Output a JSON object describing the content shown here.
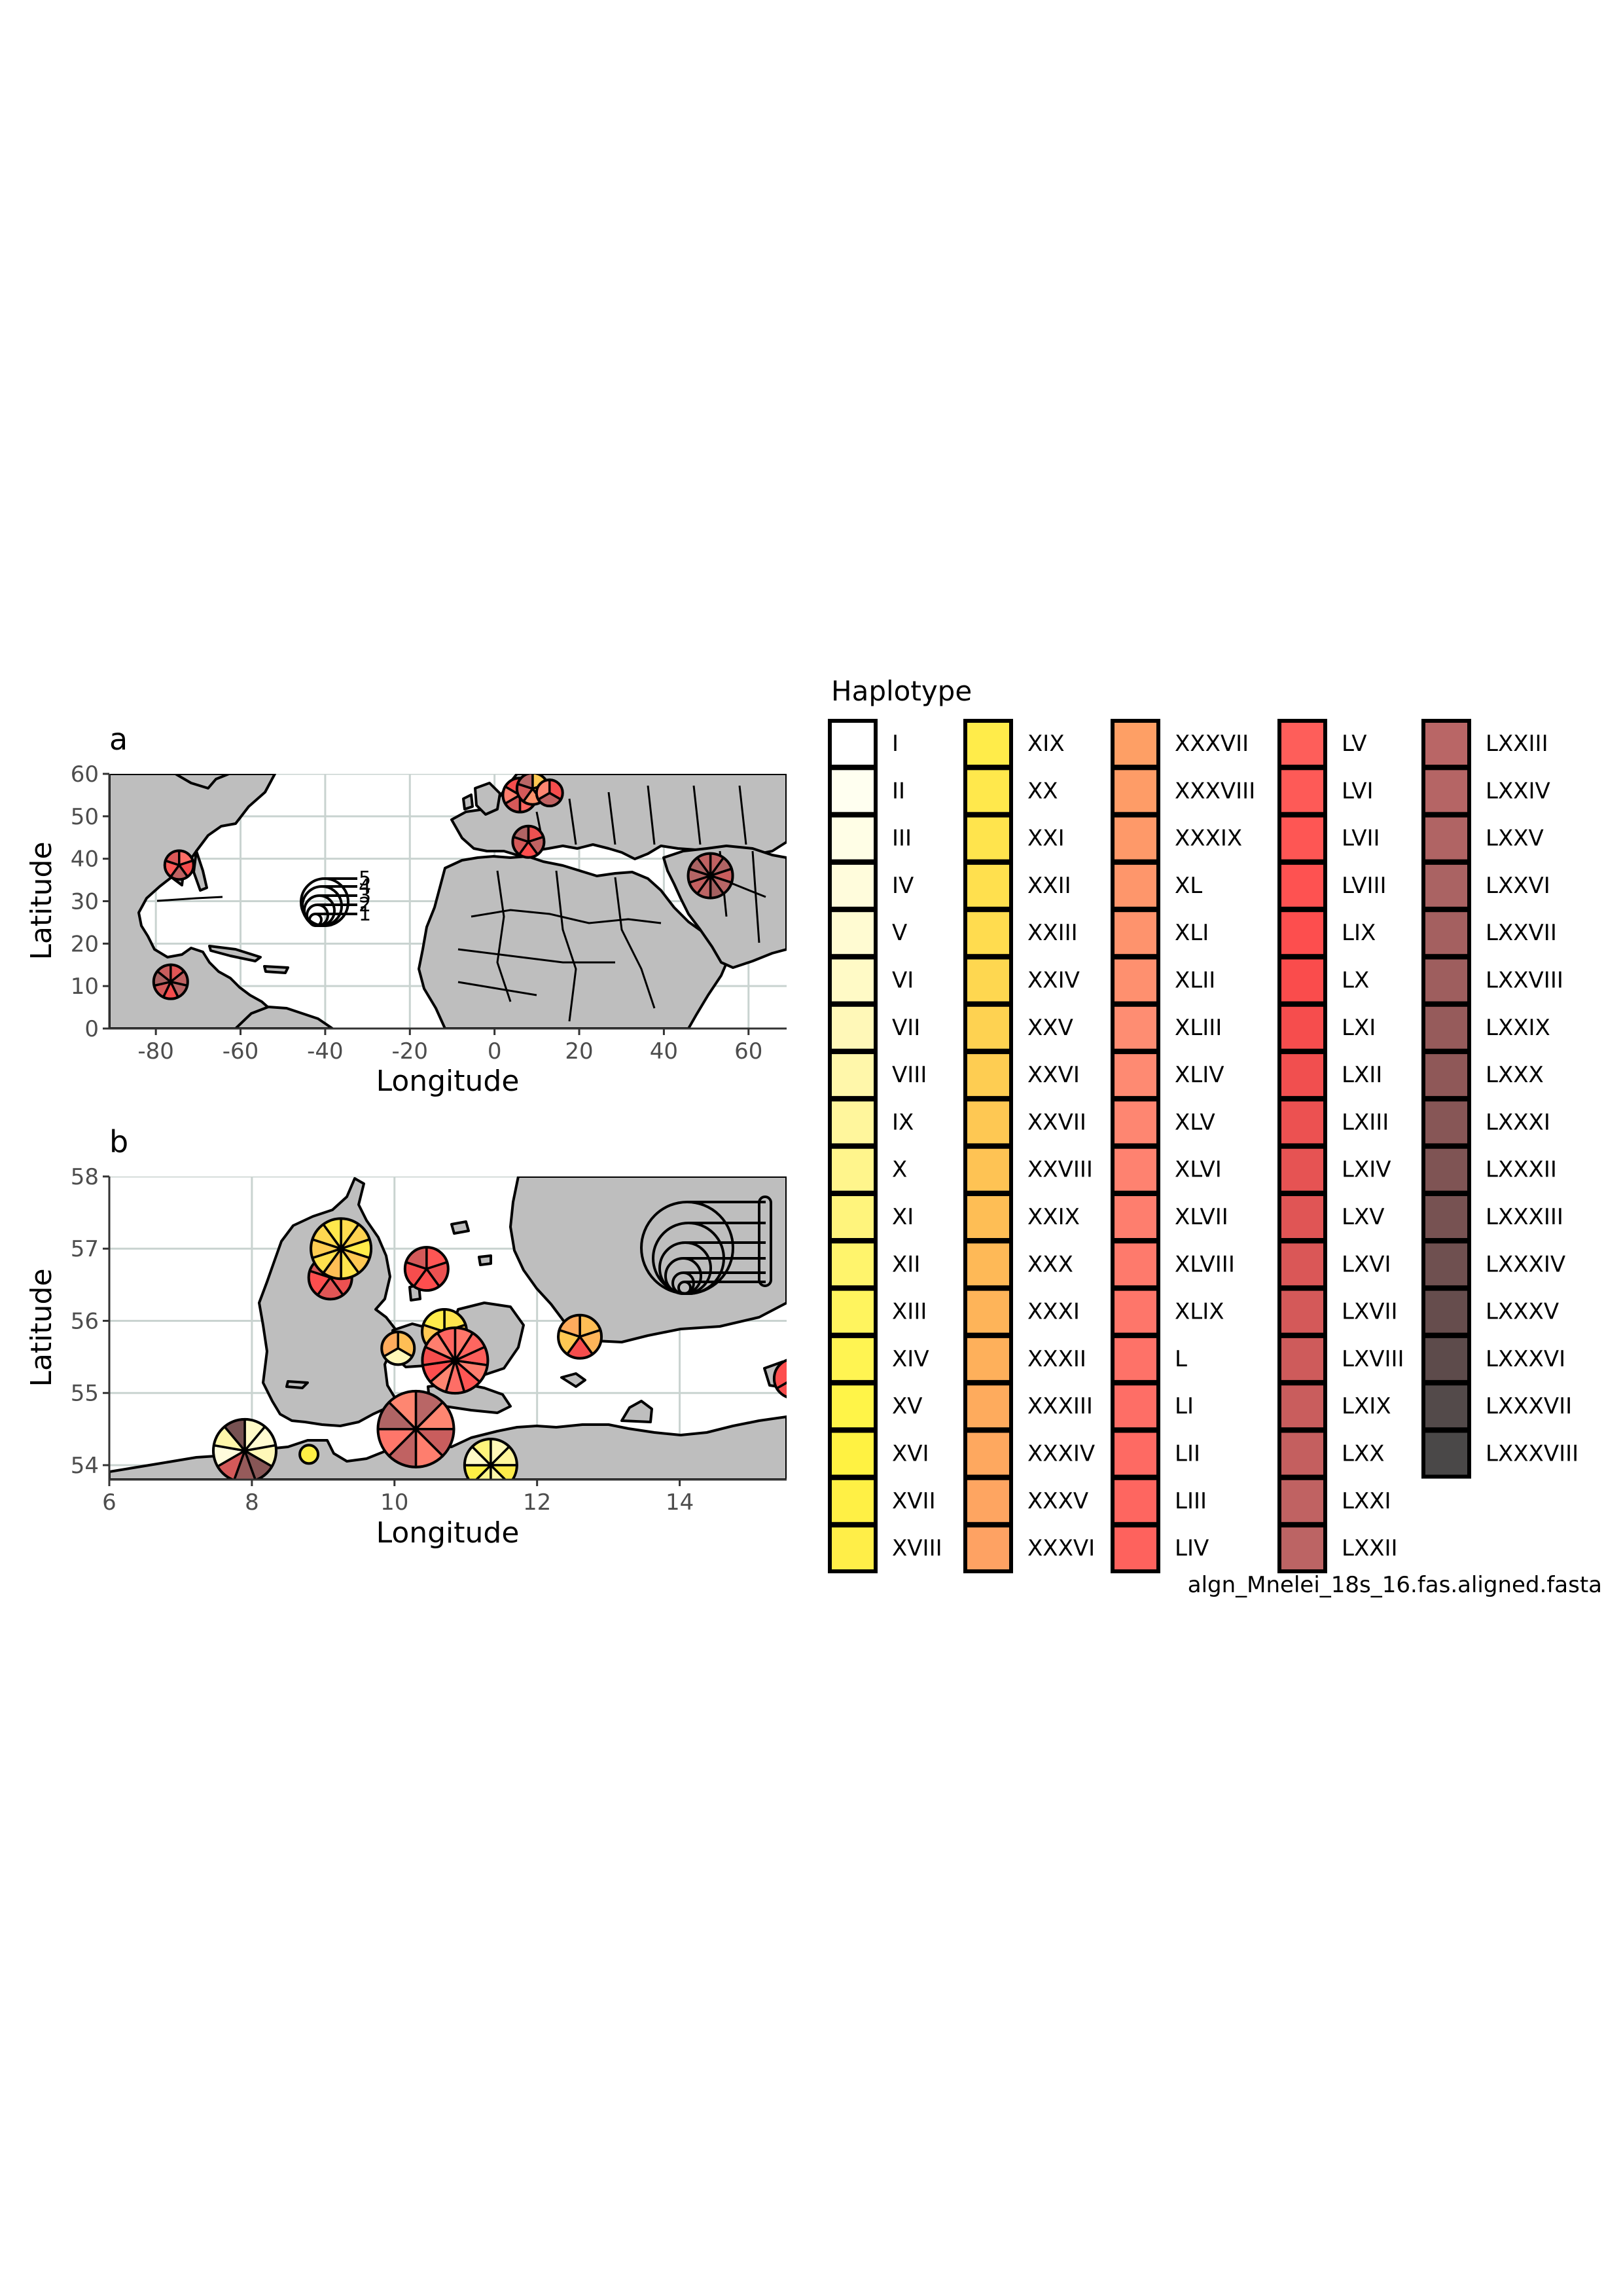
{
  "panel_a": {
    "label": "a",
    "xlabel": "Longitude",
    "ylabel": "Latitude",
    "x_ticks": [
      "-80",
      "-60",
      "-40",
      "-20",
      "0",
      "20",
      "40",
      "60"
    ],
    "y_ticks": [
      "0",
      "10",
      "20",
      "30",
      "40",
      "50",
      "60"
    ],
    "xlim": [
      -91,
      69
    ],
    "ylim": [
      0,
      60
    ],
    "size_legend": [
      "5",
      "4",
      "3",
      "2",
      "1"
    ]
  },
  "panel_b": {
    "label": "b",
    "xlabel": "Longitude",
    "ylabel": "Latitude",
    "x_ticks": [
      "6",
      "8",
      "10",
      "12",
      "14"
    ],
    "y_ticks": [
      "54",
      "55",
      "56",
      "57",
      "58"
    ],
    "xlim": [
      6,
      15.5
    ],
    "ylim": [
      53.8,
      58
    ]
  },
  "legend": {
    "title": "Haplotype",
    "items": [
      {
        "label": "I",
        "color": "#ffffff"
      },
      {
        "label": "II",
        "color": "#fffff0"
      },
      {
        "label": "III",
        "color": "#fffee6"
      },
      {
        "label": "IV",
        "color": "#fffcdc"
      },
      {
        "label": "V",
        "color": "#fffbd2"
      },
      {
        "label": "VI",
        "color": "#fffac6"
      },
      {
        "label": "VII",
        "color": "#fff8b8"
      },
      {
        "label": "VIII",
        "color": "#fff7aa"
      },
      {
        "label": "IX",
        "color": "#fff69c"
      },
      {
        "label": "X",
        "color": "#fff58c"
      },
      {
        "label": "XI",
        "color": "#fff47c"
      },
      {
        "label": "XII",
        "color": "#fff46c"
      },
      {
        "label": "XIII",
        "color": "#fff45e"
      },
      {
        "label": "XIV",
        "color": "#fff452"
      },
      {
        "label": "XV",
        "color": "#fff448"
      },
      {
        "label": "XVI",
        "color": "#fff242"
      },
      {
        "label": "XVII",
        "color": "#fff045"
      },
      {
        "label": "XVIII",
        "color": "#ffee48"
      },
      {
        "label": "XIX",
        "color": "#ffec4a"
      },
      {
        "label": "XX",
        "color": "#ffe84c"
      },
      {
        "label": "XXI",
        "color": "#ffe44d"
      },
      {
        "label": "XXII",
        "color": "#ffe04e"
      },
      {
        "label": "XXIII",
        "color": "#ffdc4f"
      },
      {
        "label": "XXIV",
        "color": "#fed750"
      },
      {
        "label": "XXV",
        "color": "#fed251"
      },
      {
        "label": "XXVI",
        "color": "#fecd52"
      },
      {
        "label": "XXVII",
        "color": "#fec853"
      },
      {
        "label": "XXVIII",
        "color": "#fec354"
      },
      {
        "label": "XXIX",
        "color": "#febe55"
      },
      {
        "label": "XXX",
        "color": "#feb957"
      },
      {
        "label": "XXXI",
        "color": "#feb459"
      },
      {
        "label": "XXXII",
        "color": "#feb05b"
      },
      {
        "label": "XXXIII",
        "color": "#feab5d"
      },
      {
        "label": "XXXIV",
        "color": "#fea85f"
      },
      {
        "label": "XXXV",
        "color": "#fea561"
      },
      {
        "label": "XXXVI",
        "color": "#fea263"
      },
      {
        "label": "XXXVII",
        "color": "#fe9f65"
      },
      {
        "label": "XXXVIII",
        "color": "#fe9c67"
      },
      {
        "label": "XXXIX",
        "color": "#fe9969"
      },
      {
        "label": "XL",
        "color": "#fe966b"
      },
      {
        "label": "XLI",
        "color": "#fe936d"
      },
      {
        "label": "XLII",
        "color": "#fe906f"
      },
      {
        "label": "XLIII",
        "color": "#fe8d72"
      },
      {
        "label": "XLIV",
        "color": "#fe8a72"
      },
      {
        "label": "XLV",
        "color": "#fe8671"
      },
      {
        "label": "XLVI",
        "color": "#fe8270"
      },
      {
        "label": "XLVII",
        "color": "#fe7e6e"
      },
      {
        "label": "XLVIII",
        "color": "#fe7a6c"
      },
      {
        "label": "XLIX",
        "color": "#fe766a"
      },
      {
        "label": "L",
        "color": "#fe7268"
      },
      {
        "label": "LI",
        "color": "#fe6e66"
      },
      {
        "label": "LII",
        "color": "#fe6a63"
      },
      {
        "label": "LIII",
        "color": "#fe6660"
      },
      {
        "label": "LIV",
        "color": "#fe625d"
      },
      {
        "label": "LV",
        "color": "#fe5e5a"
      },
      {
        "label": "LVI",
        "color": "#fe5a57"
      },
      {
        "label": "LVII",
        "color": "#fe5654"
      },
      {
        "label": "LVIII",
        "color": "#fe5251"
      },
      {
        "label": "LIX",
        "color": "#fd4e4e"
      },
      {
        "label": "LX",
        "color": "#fa4c4c"
      },
      {
        "label": "LXI",
        "color": "#f64d4d"
      },
      {
        "label": "LXII",
        "color": "#f14f4f"
      },
      {
        "label": "LXIII",
        "color": "#ec5151"
      },
      {
        "label": "LXIV",
        "color": "#e65353"
      },
      {
        "label": "LXV",
        "color": "#e05555"
      },
      {
        "label": "LXVI",
        "color": "#da5757"
      },
      {
        "label": "LXVII",
        "color": "#d45959"
      },
      {
        "label": "LXVIII",
        "color": "#ce5b5b"
      },
      {
        "label": "LXIX",
        "color": "#c95d5d"
      },
      {
        "label": "LXX",
        "color": "#c45f5f"
      },
      {
        "label": "LXXI",
        "color": "#c06262"
      },
      {
        "label": "LXXII",
        "color": "#bc6464"
      },
      {
        "label": "LXXIII",
        "color": "#b96666"
      },
      {
        "label": "LXXIV",
        "color": "#b56565"
      },
      {
        "label": "LXXV",
        "color": "#b06464"
      },
      {
        "label": "LXXVI",
        "color": "#aa6363"
      },
      {
        "label": "LXXVII",
        "color": "#a46060"
      },
      {
        "label": "LXXVIII",
        "color": "#9e5e5e"
      },
      {
        "label": "LXXIX",
        "color": "#965b5b"
      },
      {
        "label": "LXXX",
        "color": "#8f5858"
      },
      {
        "label": "LXXXI",
        "color": "#875656"
      },
      {
        "label": "LXXXII",
        "color": "#7f5454"
      },
      {
        "label": "LXXXIII",
        "color": "#775252"
      },
      {
        "label": "LXXXIV",
        "color": "#6f5050"
      },
      {
        "label": "LXXXV",
        "color": "#664d4d"
      },
      {
        "label": "LXXXVI",
        "color": "#5d4b4b"
      },
      {
        "label": "LXXXVII",
        "color": "#534a4a"
      },
      {
        "label": "LXXXVIII",
        "color": "#4a4848"
      }
    ]
  },
  "caption": "algn_Mnelei_18s_16.fas.aligned.fasta",
  "colors": {
    "land": "#bebebe",
    "grid": "#c9d3d0",
    "outline": "#000000"
  }
}
